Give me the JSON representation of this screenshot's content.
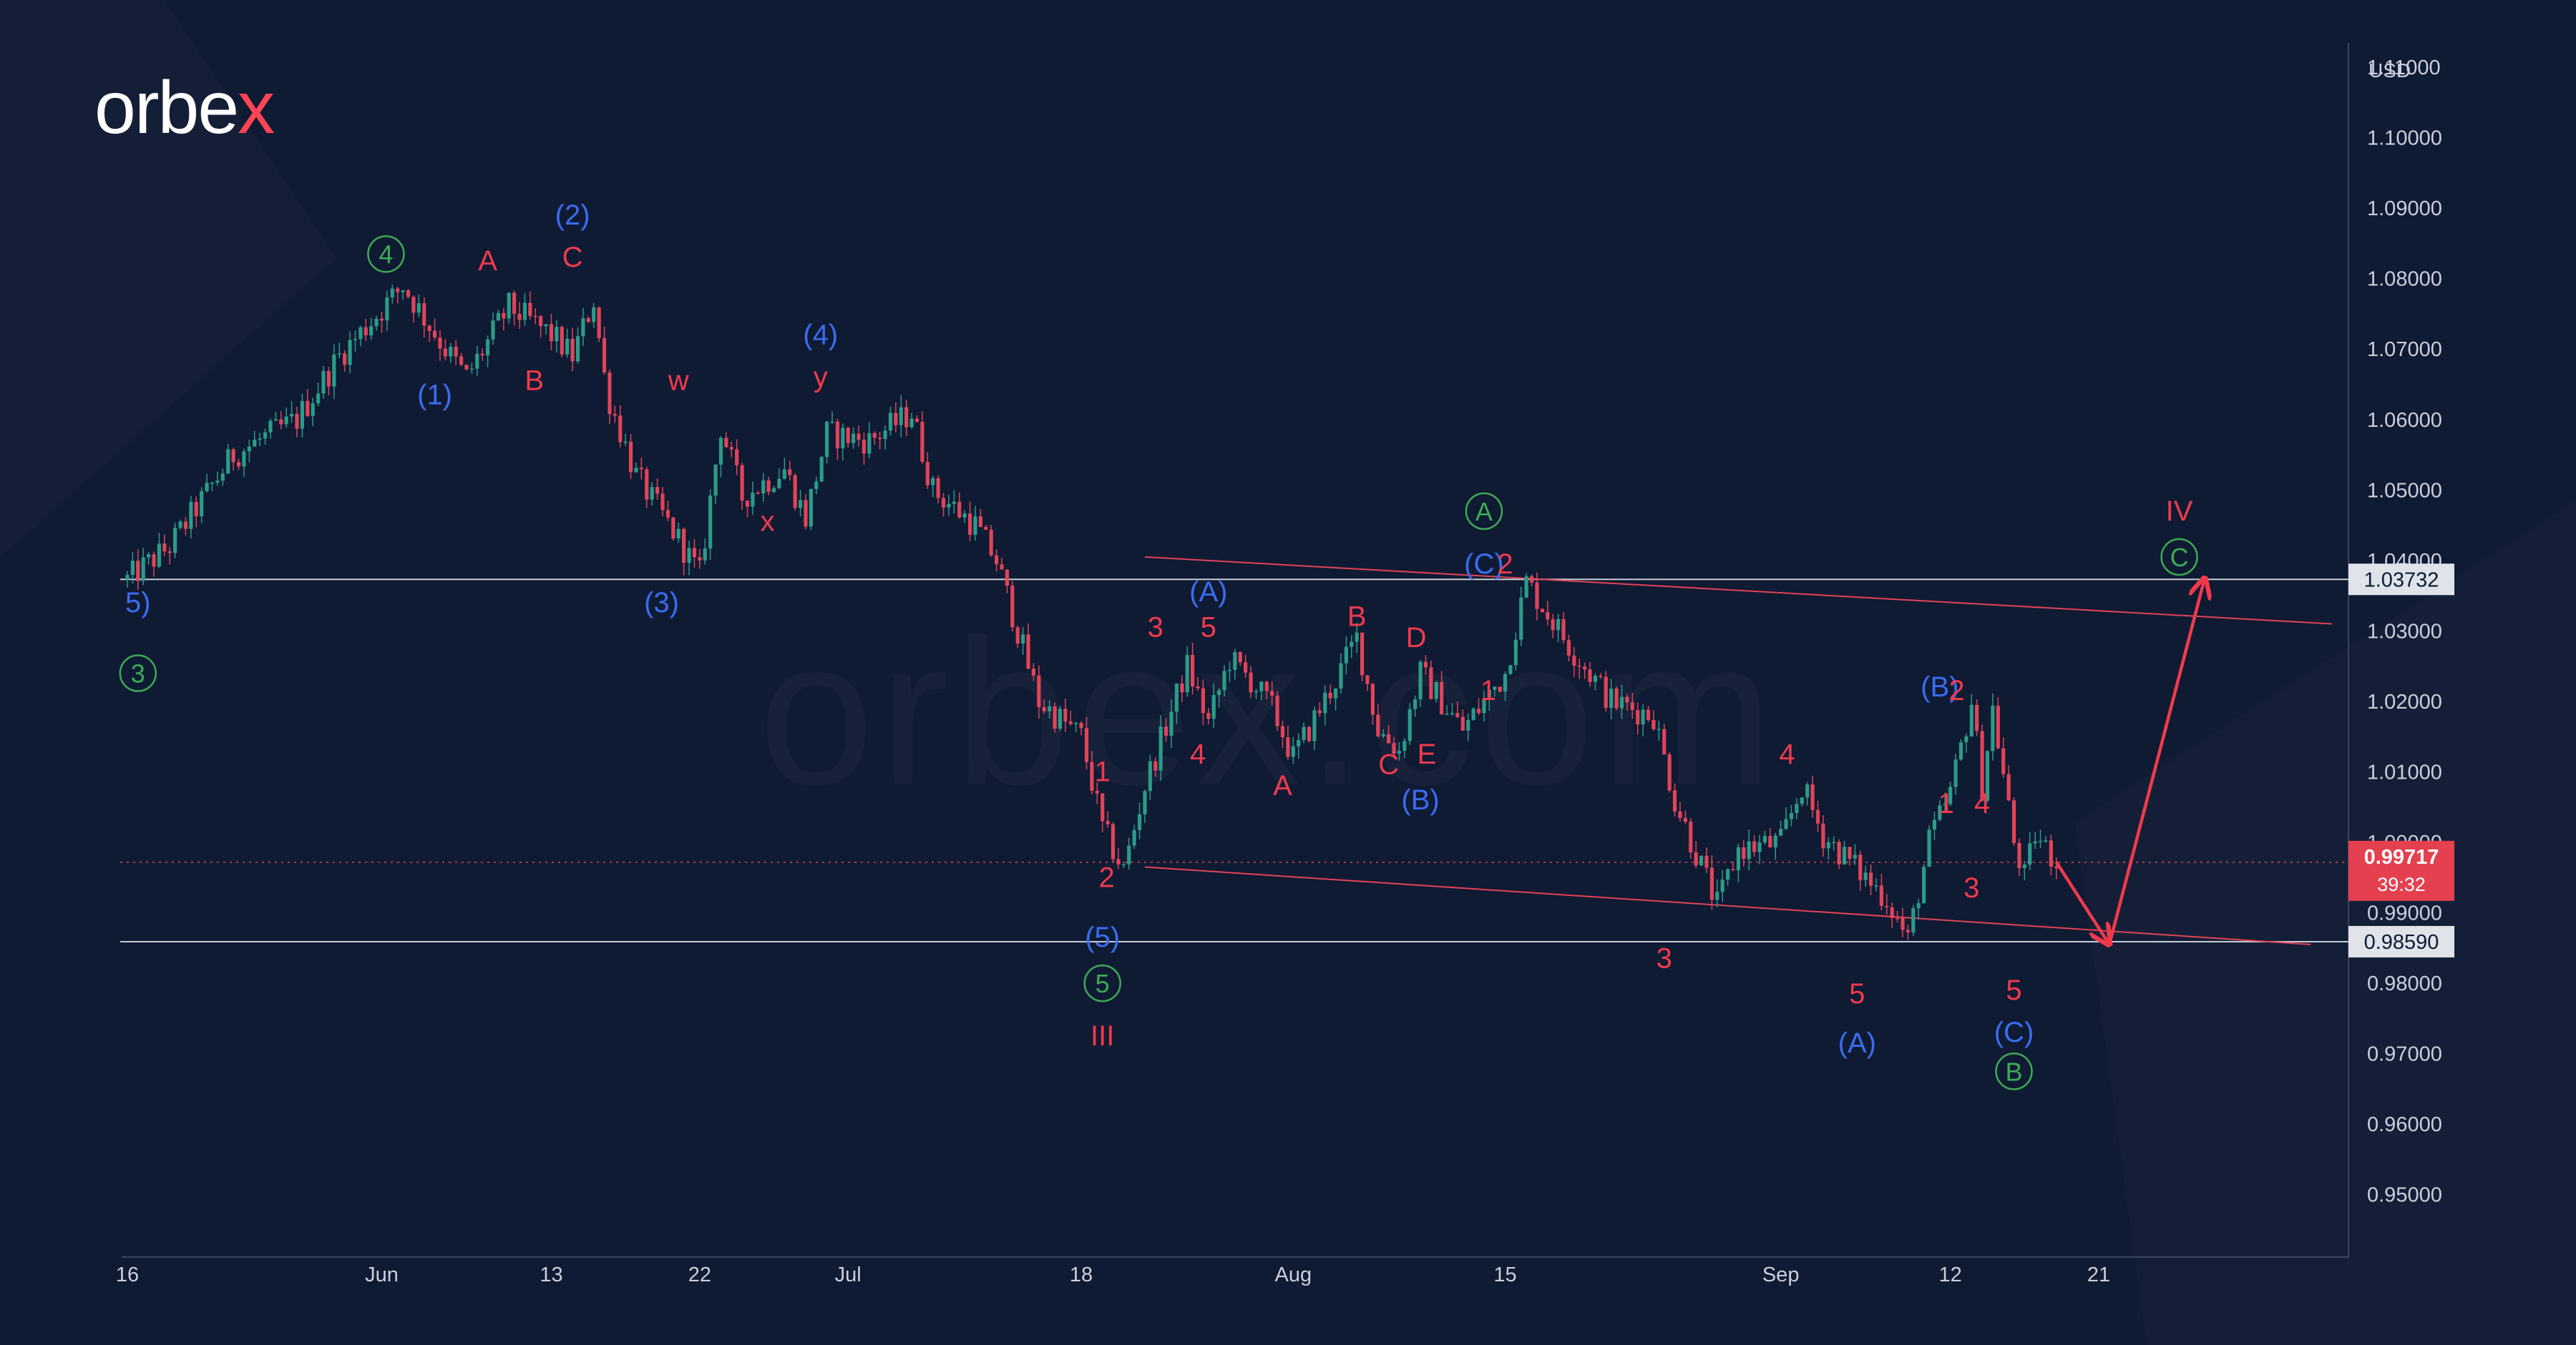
{
  "brand": {
    "logo_main": "orbe",
    "logo_accent": "x",
    "watermark": "orbex.com"
  },
  "colors": {
    "background": "#0f1a33",
    "up": "#2b9b8a",
    "down": "#e0445a",
    "blue": "#3a6cf0",
    "red": "#f03a4c",
    "green": "#3eaa55",
    "axis_text": "#c9cfdc"
  },
  "chart_data": {
    "type": "candlestick",
    "currency": "USD",
    "ylim": [
      0.945,
      1.1165
    ],
    "y_ticks": [
      "1.11000",
      "1.10000",
      "1.09000",
      "1.08000",
      "1.07000",
      "1.06000",
      "1.05000",
      "1.04000",
      "1.03000",
      "1.02000",
      "1.01000",
      "1.00000",
      "0.99000",
      "0.98000",
      "0.97000",
      "0.96000",
      "0.95000"
    ],
    "x_ticks": [
      {
        "label": "16",
        "t": 0
      },
      {
        "label": "Jun",
        "t": 12
      },
      {
        "label": "13",
        "t": 20
      },
      {
        "label": "22",
        "t": 27
      },
      {
        "label": "Jul",
        "t": 34
      },
      {
        "label": "18",
        "t": 45
      },
      {
        "label": "Aug",
        "t": 55
      },
      {
        "label": "15",
        "t": 65
      },
      {
        "label": "Sep",
        "t": 78
      },
      {
        "label": "12",
        "t": 86
      },
      {
        "label": "21",
        "t": 93
      }
    ],
    "x_range": [
      0,
      101
    ],
    "price_path": [
      [
        0,
        1.0373
      ],
      [
        2,
        1.042
      ],
      [
        5,
        1.055
      ],
      [
        8,
        1.06
      ],
      [
        10,
        1.069
      ],
      [
        13,
        1.079
      ],
      [
        15,
        1.07
      ],
      [
        16,
        1.066
      ],
      [
        18,
        1.076
      ],
      [
        20,
        1.072
      ],
      [
        21,
        1.069
      ],
      [
        22,
        1.077
      ],
      [
        22.6,
        1.064
      ],
      [
        24,
        1.052
      ],
      [
        26,
        1.043
      ],
      [
        27,
        1.038
      ],
      [
        28,
        1.059
      ],
      [
        29,
        1.049
      ],
      [
        31,
        1.053
      ],
      [
        32,
        1.046
      ],
      [
        33,
        1.058
      ],
      [
        35,
        1.057
      ],
      [
        37,
        1.061
      ],
      [
        38,
        1.05
      ],
      [
        40,
        1.045
      ],
      [
        41,
        1.04
      ],
      [
        43,
        1.02
      ],
      [
        45,
        1.015
      ],
      [
        46,
        1.002
      ],
      [
        47,
        0.996
      ],
      [
        48,
        1.008
      ],
      [
        50,
        1.025
      ],
      [
        51,
        1.017
      ],
      [
        52,
        1.026
      ],
      [
        53,
        1.023
      ],
      [
        54,
        1.019
      ],
      [
        55,
        1.012
      ],
      [
        57,
        1.023
      ],
      [
        58,
        1.029
      ],
      [
        59,
        1.016
      ],
      [
        60,
        1.013
      ],
      [
        61,
        1.024
      ],
      [
        62,
        1.02
      ],
      [
        63,
        1.016
      ],
      [
        64,
        1.02
      ],
      [
        65,
        1.024
      ],
      [
        66,
        1.037
      ],
      [
        68,
        1.028
      ],
      [
        70,
        1.02
      ],
      [
        72,
        1.018
      ],
      [
        73,
        1.006
      ],
      [
        75,
        0.991
      ],
      [
        76,
        0.999
      ],
      [
        78,
        1.0
      ],
      [
        79,
        1.008
      ],
      [
        80,
        1.001
      ],
      [
        82,
        0.995
      ],
      [
        83,
        0.992
      ],
      [
        84,
        0.986
      ],
      [
        85,
        1.0
      ],
      [
        86,
        1.007
      ],
      [
        87,
        1.02
      ],
      [
        87.5,
        1.008
      ],
      [
        88,
        1.019
      ],
      [
        89,
        1.0
      ],
      [
        89.5,
        0.995
      ],
      [
        90,
        1.001
      ],
      [
        91,
        0.9972
      ]
    ],
    "horizontal_levels": [
      {
        "value": 1.03732,
        "label": "1.03732"
      },
      {
        "value": 0.9859,
        "label": "0.98590"
      }
    ],
    "current_price": {
      "value": 0.99717,
      "label": "0.99717",
      "countdown": "39:32"
    },
    "trend_lines": [
      {
        "from": [
          48,
          1.0405
        ],
        "to": [
          104,
          1.031
        ]
      },
      {
        "from": [
          48,
          0.9965
        ],
        "to": [
          103,
          0.9855
        ]
      }
    ],
    "projection": [
      [
        91,
        0.9972
      ],
      [
        93.5,
        0.9855
      ],
      [
        98,
        1.0375
      ]
    ],
    "wave_labels": [
      {
        "text": "5)",
        "t": 0.5,
        "v": 1.034,
        "c": "blue"
      },
      {
        "text": "3",
        "t": 0.5,
        "v": 1.024,
        "c": "green",
        "circle": true
      },
      {
        "text": "4",
        "t": 12.2,
        "v": 1.0835,
        "c": "green",
        "circle": true
      },
      {
        "text": "(1)",
        "t": 14.5,
        "v": 1.0635,
        "c": "blue"
      },
      {
        "text": "A",
        "t": 17.0,
        "v": 1.0825,
        "c": "red"
      },
      {
        "text": "B",
        "t": 19.2,
        "v": 1.0655,
        "c": "red"
      },
      {
        "text": "(2)",
        "t": 21.0,
        "v": 1.089,
        "c": "blue"
      },
      {
        "text": "C",
        "t": 21.0,
        "v": 1.083,
        "c": "red"
      },
      {
        "text": "(3)",
        "t": 25.2,
        "v": 1.034,
        "c": "blue"
      },
      {
        "text": "w",
        "t": 26.0,
        "v": 1.0655,
        "c": "red"
      },
      {
        "text": "x",
        "t": 30.2,
        "v": 1.0455,
        "c": "red"
      },
      {
        "text": "(4)",
        "t": 32.7,
        "v": 1.072,
        "c": "blue"
      },
      {
        "text": "y",
        "t": 32.7,
        "v": 1.066,
        "c": "red"
      },
      {
        "text": "1",
        "t": 46.0,
        "v": 1.01,
        "c": "red"
      },
      {
        "text": "2",
        "t": 46.2,
        "v": 0.995,
        "c": "red"
      },
      {
        "text": "(5)",
        "t": 46.0,
        "v": 0.9865,
        "c": "blue"
      },
      {
        "text": "5",
        "t": 46.0,
        "v": 0.98,
        "c": "green",
        "circle": true
      },
      {
        "text": "III",
        "t": 46.0,
        "v": 0.9725,
        "c": "red"
      },
      {
        "text": "3",
        "t": 48.5,
        "v": 1.0305,
        "c": "red"
      },
      {
        "text": "4",
        "t": 50.5,
        "v": 1.0125,
        "c": "red"
      },
      {
        "text": "5",
        "t": 51.0,
        "v": 1.0305,
        "c": "red"
      },
      {
        "text": "(A)",
        "t": 51.0,
        "v": 1.0355,
        "c": "blue"
      },
      {
        "text": "A",
        "t": 54.5,
        "v": 1.008,
        "c": "red"
      },
      {
        "text": "B",
        "t": 58.0,
        "v": 1.032,
        "c": "red"
      },
      {
        "text": "C",
        "t": 59.5,
        "v": 1.011,
        "c": "red"
      },
      {
        "text": "D",
        "t": 60.8,
        "v": 1.029,
        "c": "red"
      },
      {
        "text": "E",
        "t": 61.3,
        "v": 1.0125,
        "c": "red"
      },
      {
        "text": "(B)",
        "t": 61.0,
        "v": 1.006,
        "c": "blue"
      },
      {
        "text": "1",
        "t": 64.2,
        "v": 1.0215,
        "c": "red"
      },
      {
        "text": "A",
        "t": 64.0,
        "v": 1.047,
        "c": "green",
        "circle": true
      },
      {
        "text": "(C)",
        "t": 64.0,
        "v": 1.0395,
        "c": "blue"
      },
      {
        "text": "2",
        "t": 65.0,
        "v": 1.0395,
        "c": "red"
      },
      {
        "text": "3",
        "t": 72.5,
        "v": 0.9835,
        "c": "red"
      },
      {
        "text": "4",
        "t": 78.3,
        "v": 1.0125,
        "c": "red"
      },
      {
        "text": "5",
        "t": 81.6,
        "v": 0.9785,
        "c": "red"
      },
      {
        "text": "(A)",
        "t": 81.6,
        "v": 0.9715,
        "c": "blue"
      },
      {
        "text": "(B)",
        "t": 85.5,
        "v": 1.022,
        "c": "blue"
      },
      {
        "text": "2",
        "t": 86.3,
        "v": 1.0215,
        "c": "red"
      },
      {
        "text": "1",
        "t": 85.8,
        "v": 1.0055,
        "c": "red"
      },
      {
        "text": "4",
        "t": 87.5,
        "v": 1.0055,
        "c": "red"
      },
      {
        "text": "3",
        "t": 87.0,
        "v": 0.9935,
        "c": "red"
      },
      {
        "text": "5",
        "t": 89.0,
        "v": 0.979,
        "c": "red"
      },
      {
        "text": "(C)",
        "t": 89.0,
        "v": 0.973,
        "c": "blue"
      },
      {
        "text": "B",
        "t": 89.0,
        "v": 0.9675,
        "c": "green",
        "circle": true
      },
      {
        "text": "IV",
        "t": 96.8,
        "v": 1.047,
        "c": "red"
      },
      {
        "text": "C",
        "t": 96.8,
        "v": 1.0405,
        "c": "green",
        "circle": true
      }
    ]
  }
}
